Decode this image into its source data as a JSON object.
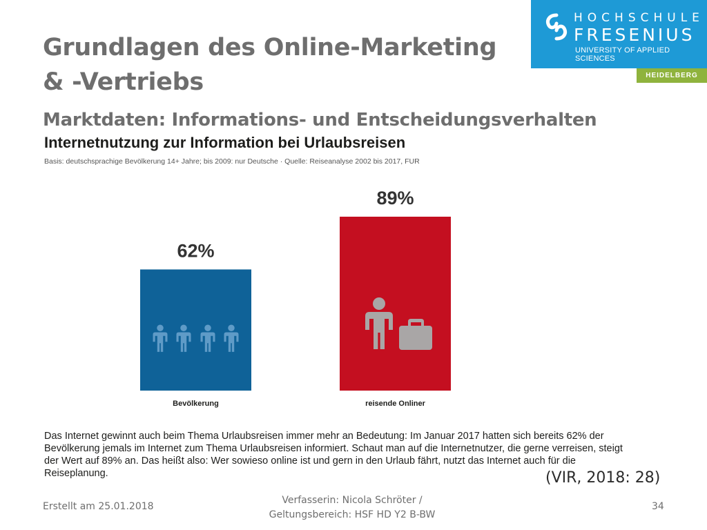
{
  "slide": {
    "title_line1": "Grundlagen des Online-Marketing",
    "title_line2": "& -Vertriebs",
    "subtitle": "Marktdaten: Informations- und Entscheidungsverhalten",
    "citation": "(VIR, 2018: 28)",
    "description": "Das Internet gewinnt auch beim Thema Urlaubsreisen immer mehr an Bedeutung: Im Januar 2017 hatten sich bereits 62% der Bevölkerung jemals im Internet zum Thema Urlaubsreisen informiert. Schaut man auf die Internetnutzer, die gerne verreisen, steigt der Wert auf 89% an. Das heißt also: Wer sowieso online ist und gern in den Urlaub fährt, nutzt das Internet auch für die Reiseplanung."
  },
  "logo": {
    "line1": "HOCHSCHULE",
    "line2": "FRESENIUS",
    "line3": "UNIVERSITY OF APPLIED SCIENCES",
    "campus": "HEIDELBERG",
    "color": "#1e9ad6",
    "campus_color": "#8fb33d"
  },
  "footer": {
    "created": "Erstellt am 25.01.2018",
    "author_line1": "Verfasserin: Nicola Schröter /",
    "author_line2": "Geltungsbereich:  HSF HD Y2 B-BW",
    "page": "34"
  },
  "chart_data": {
    "type": "bar",
    "title": "Internetnutzung zur Information bei Urlaubsreisen",
    "subtitle": "Basis: deutschsprachige Bevölkerung 14+ Jahre; bis 2009: nur Deutsche · Quelle: Reiseanalyse 2002 bis 2017, FUR",
    "categories": [
      "Bevölkerung",
      "reisende Onliner"
    ],
    "values": [
      62,
      89
    ],
    "data_labels": [
      "62%",
      "89%"
    ],
    "colors": [
      "#0f6298",
      "#c40f20"
    ],
    "icons": [
      "person-group-icon",
      "traveler-with-luggage-icon"
    ],
    "ylim": [
      0,
      100
    ],
    "grid": false
  }
}
